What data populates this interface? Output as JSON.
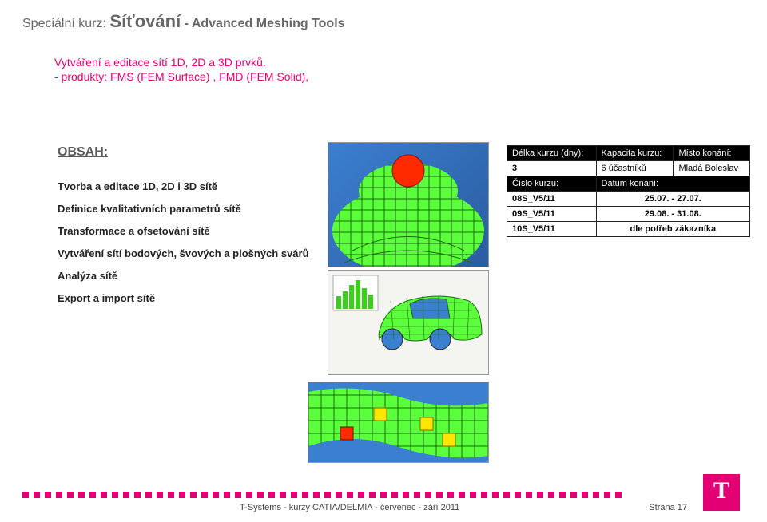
{
  "title": {
    "prefix": "Speciální kurz:",
    "main": "Síťování",
    "suffix": "- Advanced Meshing Tools"
  },
  "subtitle1": "Vytváření a editace sítí 1D, 2D a 3D prvků.",
  "subtitle2": "- produkty: FMS (FEM Surface) , FMD (FEM Solid),",
  "content_heading": "OBSAH:",
  "bullets": [
    "Tvorba a editace 1D, 2D i 3D sítě",
    "Definice kvalitativních parametrů sítě",
    "Transformace a ofsetování sítě",
    "Vytváření sítí bodových, švových a plošných svárů",
    "Analýza sítě",
    "Export a import sítě"
  ],
  "table": {
    "hdr1": [
      "Délka kurzu (dny):",
      "Kapacita kurzu:",
      "Místo konání:"
    ],
    "row1": [
      "3",
      "6 účastníků",
      "Mladá Boleslav"
    ],
    "hdr2": [
      "Číslo kurzu:",
      "Datum konání:"
    ],
    "rows2": [
      [
        "08S_V5/11",
        "25.07. - 27.07."
      ],
      [
        "09S_V5/11",
        "29.08. - 31.08."
      ],
      [
        "10S_V5/11",
        "dle potřeb zákazníka"
      ]
    ]
  },
  "footer": {
    "center": "T-Systems - kurzy CATIA/DELMIA -  červenec - září  2011",
    "page": "Strana 17"
  },
  "colors": {
    "magenta": "#e20074",
    "gray": "#666666",
    "mesh_green": "#5cff3c",
    "mesh_yellow": "#ffe600",
    "mesh_red": "#ff2a00",
    "mesh_blue": "#2a5ca0",
    "mesh_line": "#1a6b12"
  },
  "meshing_illustrations": {
    "type": "infographic",
    "description": "Three CAE meshing screenshots: dome surface mesh, car body shell mesh with quality histogram, cylindrical pipe mesh with color-coded element quality.",
    "palette": [
      "#5cff3c",
      "#ffe600",
      "#ff2a00",
      "#3b7fd0",
      "#1a6b12",
      "#f4f4f0"
    ]
  }
}
